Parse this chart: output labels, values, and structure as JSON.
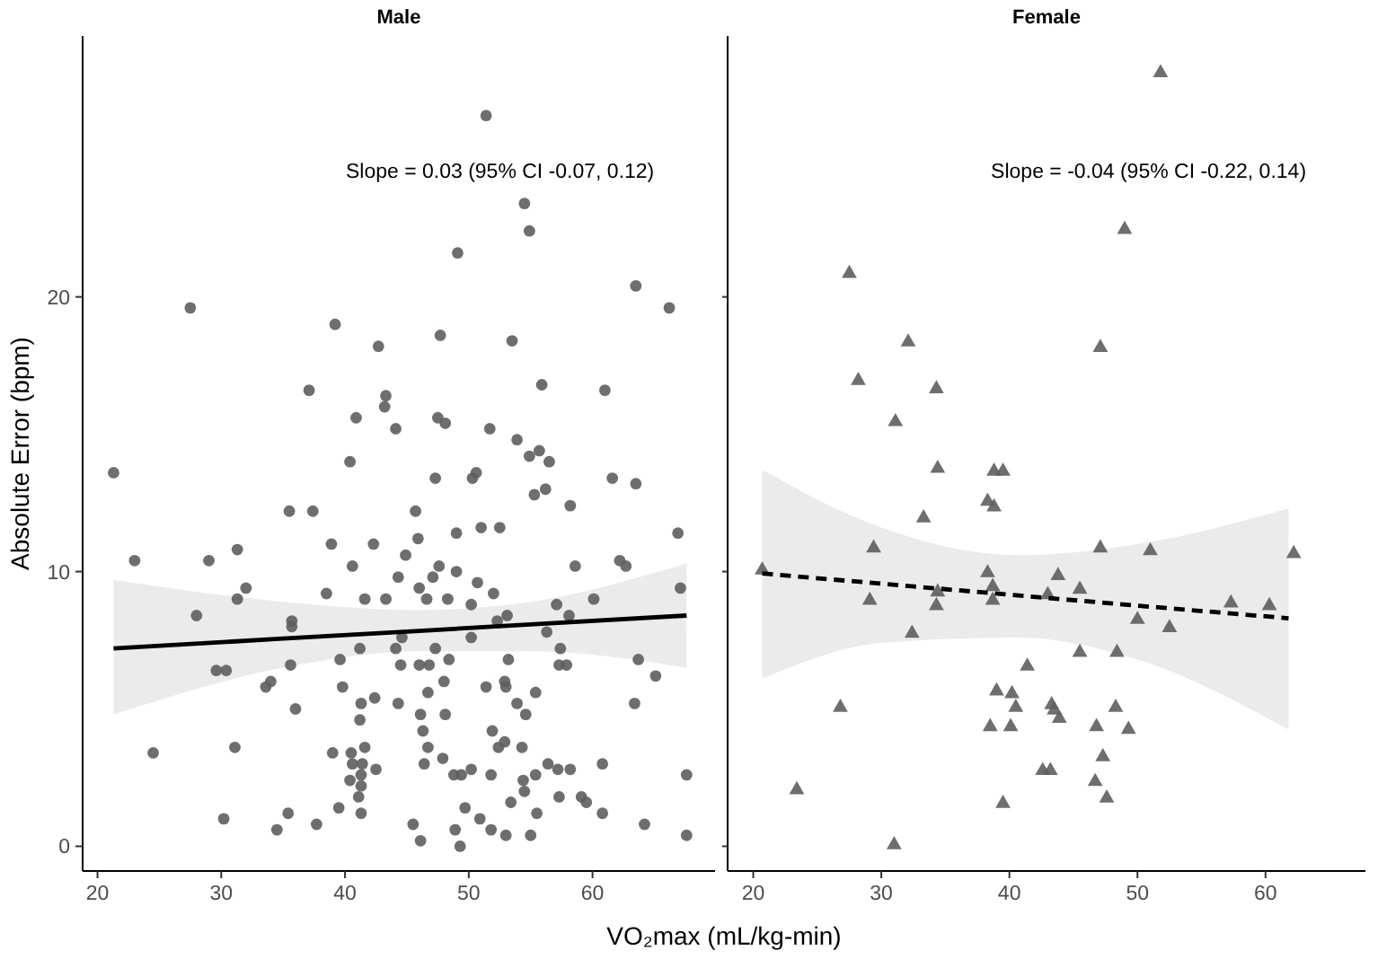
{
  "chart_data": [
    {
      "type": "scatter",
      "title": "Male",
      "xlabel": "VO₂max (mL/kg-min)",
      "ylabel": "Absolute Error (bpm)",
      "xlim": [
        18.8,
        69.9
      ],
      "xticks": [
        20,
        30,
        40,
        50,
        60
      ],
      "ylim": [
        -0.9,
        29.5
      ],
      "yticks": [
        0,
        10,
        20
      ],
      "grid": false,
      "annotations": [
        "Slope = 0.03 (95% CI -0.07, 0.12)"
      ],
      "series": [
        {
          "type": "scatter",
          "marker": "circle",
          "color": "#5e5e5e",
          "x": [
            27.5,
            39.2,
            42.7,
            37.1,
            43.3,
            43.2,
            40.9,
            44.1,
            21.3,
            40.4,
            35.5,
            37.4,
            23.0,
            29.0,
            31.3,
            38.9,
            42.3,
            40.6,
            32.0,
            31.3,
            38.5,
            41.6,
            43.3,
            28.0,
            35.7,
            35.7,
            41.2,
            29.6,
            30.4,
            35.6,
            39.6,
            33.6,
            34.0,
            39.8,
            36.0,
            41.3,
            42.4,
            41.2,
            24.5,
            31.1,
            39.0,
            40.5,
            41.6,
            40.6,
            41.4,
            42.5,
            41.3,
            40.4,
            41.3,
            41.1,
            39.5,
            41.3,
            30.2,
            35.4,
            34.5,
            37.7,
            51.4,
            54.5,
            54.9,
            49.1,
            63.5,
            66.2,
            47.7,
            53.5,
            55.9,
            61.0,
            47.5,
            48.1,
            51.7,
            53.9,
            54.9,
            55.7,
            56.5,
            47.3,
            50.3,
            50.6,
            55.3,
            56.2,
            61.6,
            63.5,
            58.2,
            45.7,
            45.9,
            49.0,
            51.0,
            52.5,
            66.9,
            44.9,
            47.6,
            49.0,
            44.3,
            47.1,
            62.2,
            62.7,
            58.6,
            46.0,
            46.6,
            48.3,
            50.7,
            52.0,
            50.2,
            57.1,
            60.1,
            67.1,
            58.1,
            53.1,
            52.3,
            56.3,
            44.6,
            50.2,
            44.1,
            47.3,
            57.4,
            44.5,
            46.0,
            46.8,
            48.4,
            53.2,
            57.3,
            57.9,
            63.7,
            65.1,
            48.0,
            51.4,
            52.9,
            53.0,
            55.4,
            46.7,
            44.3,
            53.9,
            63.4,
            46.1,
            48.1,
            54.6,
            46.3,
            51.9,
            46.7,
            52.9,
            52.4,
            54.3,
            46.4,
            47.9,
            48.8,
            49.4,
            50.2,
            51.8,
            54.4,
            55.4,
            56.4,
            57.2,
            58.2,
            60.8,
            67.6,
            54.5,
            53.4,
            49.7,
            55.5,
            57.3,
            59.1,
            59.5,
            60.8,
            50.9,
            51.8,
            53.0,
            55.0,
            45.5,
            46.1,
            48.9,
            49.3,
            64.2,
            67.6
          ],
          "values": [
            19.6,
            19.0,
            18.2,
            16.6,
            16.4,
            16.0,
            15.6,
            15.2,
            13.6,
            14.0,
            12.2,
            12.2,
            10.4,
            10.4,
            10.8,
            11.0,
            11.0,
            10.2,
            9.4,
            9.0,
            9.2,
            9.0,
            9.0,
            8.4,
            8.2,
            8.0,
            7.2,
            6.4,
            6.4,
            6.6,
            6.8,
            5.8,
            6.0,
            5.8,
            5.0,
            5.2,
            5.4,
            4.6,
            3.4,
            3.6,
            3.4,
            3.4,
            3.6,
            3.0,
            3.0,
            2.8,
            2.6,
            2.4,
            2.2,
            1.8,
            1.4,
            1.2,
            1.0,
            1.2,
            0.6,
            0.8,
            26.6,
            23.4,
            22.4,
            21.6,
            20.4,
            19.6,
            18.6,
            18.4,
            16.8,
            16.6,
            15.6,
            15.4,
            15.2,
            14.8,
            14.2,
            14.4,
            14.0,
            13.4,
            13.4,
            13.6,
            12.8,
            13.0,
            13.4,
            13.2,
            12.4,
            12.2,
            11.2,
            11.4,
            11.6,
            11.6,
            11.4,
            10.6,
            10.2,
            10.0,
            9.8,
            9.8,
            10.4,
            10.2,
            10.2,
            9.4,
            9.0,
            9.0,
            9.6,
            9.2,
            8.8,
            8.8,
            9.0,
            9.4,
            8.4,
            8.4,
            8.2,
            7.8,
            7.6,
            7.6,
            7.2,
            7.2,
            7.2,
            6.6,
            6.6,
            6.6,
            6.8,
            6.8,
            6.6,
            6.6,
            6.8,
            6.2,
            6.0,
            5.8,
            6.0,
            5.8,
            5.6,
            5.6,
            5.2,
            5.2,
            5.2,
            4.8,
            4.8,
            4.8,
            4.2,
            4.2,
            3.6,
            3.8,
            3.6,
            3.6,
            3.0,
            3.2,
            2.6,
            2.6,
            2.8,
            2.6,
            2.4,
            2.6,
            3.0,
            2.8,
            2.8,
            3.0,
            2.6,
            2.0,
            1.6,
            1.4,
            1.2,
            1.8,
            1.8,
            1.6,
            1.2,
            1.0,
            0.6,
            0.4,
            0.4,
            0.8,
            0.2,
            0.6,
            0.0,
            0.8,
            0.4
          ]
        },
        {
          "type": "line",
          "color": "#000000",
          "line_style": "solid",
          "x": [
            21.3,
            35,
            46,
            55,
            67.6
          ],
          "values": [
            7.2,
            7.56,
            7.84,
            8.08,
            8.4
          ],
          "lower": [
            4.8,
            6.5,
            7.1,
            7.1,
            6.5
          ],
          "upper": [
            9.7,
            8.9,
            8.6,
            8.9,
            10.3
          ]
        }
      ]
    },
    {
      "type": "scatter",
      "title": "Female",
      "xlim": [
        18,
        67.8
      ],
      "xticks": [
        20,
        30,
        40,
        50,
        60
      ],
      "ylim": [
        -0.9,
        29.5
      ],
      "yticks": [
        0,
        10,
        20
      ],
      "tick_labels": "x",
      "grid": false,
      "annotations": [
        "Slope = -0.04 (95% CI -0.22, 0.14)"
      ],
      "series": [
        {
          "type": "scatter",
          "marker": "triangle",
          "color": "#5e5e5e",
          "x": [
            51.8,
            49.0,
            27.5,
            32.1,
            47.1,
            28.2,
            34.3,
            31.1,
            34.4,
            38.8,
            39.5,
            38.3,
            38.8,
            33.3,
            29.4,
            47.1,
            51.0,
            62.2,
            20.7,
            38.3,
            43.8,
            38.7,
            45.5,
            34.4,
            43.0,
            29.1,
            38.7,
            57.3,
            60.3,
            34.3,
            50.0,
            52.5,
            32.4,
            45.5,
            48.4,
            41.4,
            26.8,
            39.0,
            40.2,
            40.5,
            43.3,
            43.5,
            43.9,
            48.3,
            38.5,
            40.1,
            46.8,
            49.3,
            47.3,
            42.6,
            43.2,
            46.7,
            47.6,
            39.5,
            23.4,
            31.0
          ],
          "values": [
            28.2,
            22.5,
            20.9,
            18.4,
            18.2,
            17.0,
            16.7,
            15.5,
            13.8,
            13.7,
            13.7,
            12.6,
            12.4,
            12.0,
            10.9,
            10.9,
            10.8,
            10.7,
            10.1,
            10.0,
            9.9,
            9.5,
            9.4,
            9.3,
            9.2,
            9.0,
            9.0,
            8.9,
            8.8,
            8.8,
            8.3,
            8.0,
            7.8,
            7.1,
            7.1,
            6.6,
            5.1,
            5.7,
            5.6,
            5.1,
            5.2,
            5.0,
            4.7,
            5.1,
            4.4,
            4.4,
            4.4,
            4.3,
            3.3,
            2.8,
            2.8,
            2.4,
            1.8,
            1.6,
            2.1,
            0.1
          ]
        },
        {
          "type": "line",
          "color": "#000000",
          "line_style": "dashed",
          "x": [
            20.7,
            30,
            40.7,
            50,
            61.8
          ],
          "values": [
            9.93,
            9.56,
            9.13,
            8.76,
            8.3
          ],
          "lower": [
            6.1,
            7.4,
            7.6,
            6.8,
            4.25
          ],
          "upper": [
            13.7,
            11.6,
            10.6,
            11.0,
            12.3
          ]
        }
      ]
    }
  ]
}
